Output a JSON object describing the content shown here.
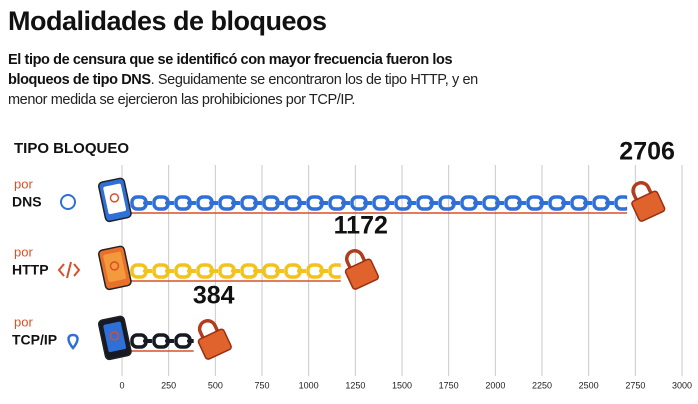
{
  "chart_data": {
    "type": "hbar",
    "title": "Modalidades de bloqueos",
    "subtitle_bold": "El tipo de censura que se identificó con mayor frecuencia fueron los bloqueos de tipo DNS",
    "subtitle": ". Seguidamente se encontraron los de tipo HTTP, y en menor medida se ejercieron las prohibiciones por TCP/IP.",
    "axis_label": "TIPO BLOQUEO",
    "category_prefix": "por",
    "categories": [
      "DNS",
      "HTTP",
      "TCP/IP"
    ],
    "values": [
      2706,
      1172,
      384
    ],
    "colors": [
      "#2f6fd8",
      "#f3c21b",
      "#161a24"
    ],
    "xlim": [
      0,
      3000
    ],
    "xticks": [
      0,
      250,
      500,
      750,
      1000,
      1250,
      1500,
      1750,
      2000,
      2250,
      2500,
      2750,
      3000
    ],
    "grid": true
  }
}
